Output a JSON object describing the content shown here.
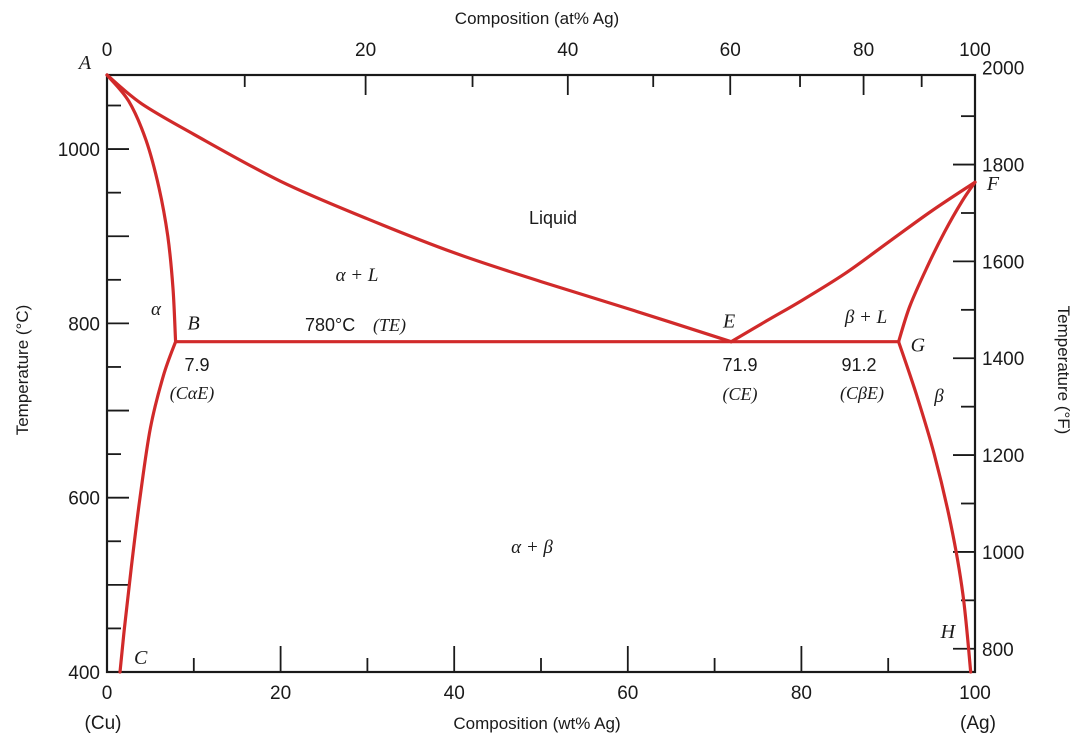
{
  "chart_data": {
    "type": "phase-diagram",
    "top_axis": {
      "title": "Composition (at% Ag)",
      "ticks": [
        {
          "at_pct": 0,
          "label": "0"
        },
        {
          "at_pct": 20,
          "label": "20"
        },
        {
          "at_pct": 40,
          "label": "40"
        },
        {
          "at_pct": 60,
          "label": "60"
        },
        {
          "at_pct": 80,
          "label": "80"
        },
        {
          "at_pct": 100,
          "label": "100"
        }
      ]
    },
    "bottom_axis": {
      "title": "Composition (wt% Ag)",
      "range": [
        0,
        100
      ],
      "ticks": [
        "0",
        "20",
        "40",
        "60",
        "80",
        "100"
      ],
      "end_labels": {
        "left": "(Cu)",
        "right": "(Ag)"
      }
    },
    "left_axis": {
      "title": "Temperature (°C)",
      "range": [
        400,
        1085
      ],
      "ticks": [
        "400",
        "600",
        "800",
        "1000"
      ]
    },
    "right_axis": {
      "title": "Temperature (°F)",
      "ticks": [
        "800",
        "1000",
        "1200",
        "1400",
        "1600",
        "1800",
        "2000"
      ]
    },
    "points": [
      {
        "label": "A",
        "wt_pct": 0,
        "temp_c": 1085
      },
      {
        "label": "B",
        "wt_pct": 7.9,
        "temp_c": 779
      },
      {
        "label": "C",
        "wt_pct": 1.5,
        "temp_c": 400
      },
      {
        "label": "E",
        "wt_pct": 71.9,
        "temp_c": 779
      },
      {
        "label": "F",
        "wt_pct": 100,
        "temp_c": 962
      },
      {
        "label": "G",
        "wt_pct": 91.2,
        "temp_c": 779
      },
      {
        "label": "H",
        "wt_pct": 99.5,
        "temp_c": 400
      }
    ],
    "boundaries": [
      {
        "name": "liquidus-left",
        "points": [
          [
            0,
            1085
          ],
          [
            4,
            1052
          ],
          [
            10,
            1017
          ],
          [
            20,
            963
          ],
          [
            30,
            920
          ],
          [
            40,
            881
          ],
          [
            50,
            848
          ],
          [
            60,
            817
          ],
          [
            71.9,
            779
          ]
        ]
      },
      {
        "name": "liquidus-right",
        "points": [
          [
            71.9,
            779
          ],
          [
            76,
            803
          ],
          [
            80,
            826
          ],
          [
            85,
            857
          ],
          [
            90,
            893
          ],
          [
            95,
            929
          ],
          [
            100,
            962
          ]
        ]
      },
      {
        "name": "solidus-left",
        "points": [
          [
            0,
            1085
          ],
          [
            2.5,
            1055
          ],
          [
            4.5,
            1010
          ],
          [
            6,
            955
          ],
          [
            7,
            900
          ],
          [
            7.6,
            840
          ],
          [
            7.9,
            779
          ]
        ]
      },
      {
        "name": "solidus-right",
        "points": [
          [
            91.2,
            779
          ],
          [
            92.5,
            820
          ],
          [
            94.5,
            865
          ],
          [
            96.5,
            905
          ],
          [
            98.5,
            940
          ],
          [
            100,
            962
          ]
        ]
      },
      {
        "name": "eutectic-isotherm",
        "points": [
          [
            7.9,
            779
          ],
          [
            91.2,
            779
          ]
        ]
      },
      {
        "name": "solvus-left",
        "points": [
          [
            7.9,
            779
          ],
          [
            6.5,
            740
          ],
          [
            5,
            680
          ],
          [
            3.8,
            600
          ],
          [
            2.8,
            520
          ],
          [
            2,
            450
          ],
          [
            1.5,
            400
          ]
        ]
      },
      {
        "name": "solvus-right",
        "points": [
          [
            91.2,
            779
          ],
          [
            93.2,
            720
          ],
          [
            95.3,
            650
          ],
          [
            97.2,
            570
          ],
          [
            98.6,
            490
          ],
          [
            99.5,
            400
          ]
        ]
      }
    ],
    "region_labels": [
      "Liquid",
      "α + L",
      "β + L",
      "α",
      "β",
      "α + β"
    ],
    "annotations": {
      "eutectic_temp": "780°C",
      "eutectic_temp_symbol": "(TE)",
      "b_value": "7.9",
      "b_symbol": "(CαE)",
      "e_value": "71.9",
      "e_symbol": "(CE)",
      "g_value": "91.2",
      "g_symbol": "(CβE)"
    }
  },
  "colors": {
    "curve": "#d12a2a",
    "frame": "#1a1a1a"
  }
}
